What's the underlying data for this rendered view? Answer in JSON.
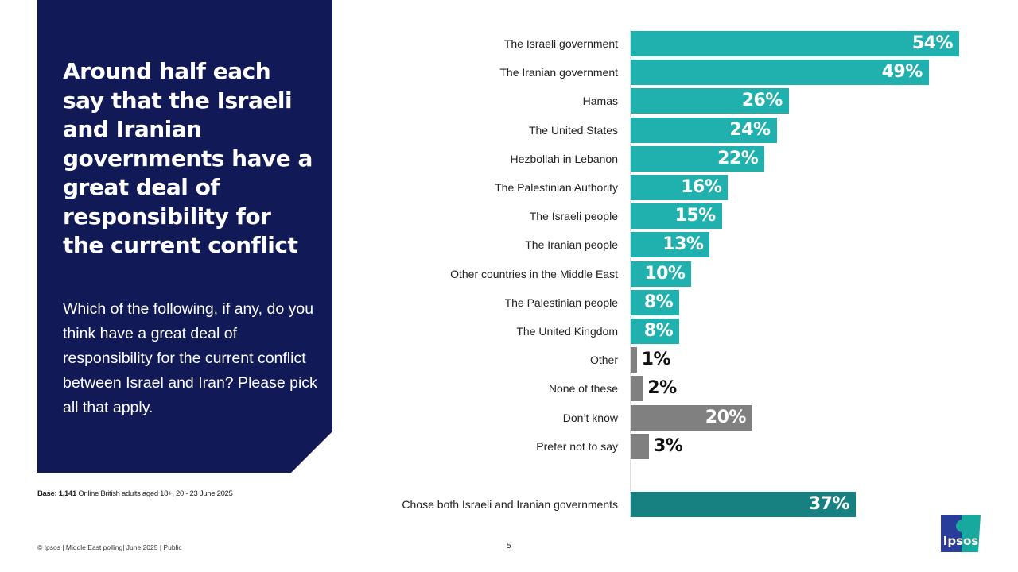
{
  "headline": "Around half each say that the Israeli and Iranian governments have a great deal of responsibility for the current conflict",
  "question": "Which of the following, if any, do you think have a great deal of responsibility for the current conflict between Israel and Iran? Please pick all that apply.",
  "base": {
    "label": "Base: 1,141",
    "text": " Online British adults aged 18+, 20 - 23 June 2025"
  },
  "footer": "© Ipsos | Middle East polling| June 2025 | Public",
  "page_number": "5",
  "logo_text": "Ipsos",
  "colors": {
    "panel": "#111a56",
    "teal": "#20b0ae",
    "grey": "#808080",
    "dark_teal": "#178080"
  },
  "chart_data": {
    "type": "bar",
    "orientation": "horizontal",
    "unit": "%",
    "xlim": [
      0,
      54
    ],
    "categories": [
      "The Israeli government",
      "The Iranian government",
      "Hamas",
      "The United States",
      "Hezbollah in Lebanon",
      "The Palestinian Authority",
      "The Israeli people",
      "The Iranian people",
      "Other countries in the Middle East",
      "The Palestinian people",
      "The United Kingdom",
      "Other",
      "None of these",
      "Don’t know",
      "Prefer not to say",
      "Chose both Israeli and Iranian governments"
    ],
    "values": [
      54,
      49,
      26,
      24,
      22,
      16,
      15,
      13,
      10,
      8,
      8,
      1,
      2,
      20,
      3,
      37
    ],
    "labels": [
      "54%",
      "49%",
      "26%",
      "24%",
      "22%",
      "16%",
      "15%",
      "13%",
      "10%",
      "8%",
      "8%",
      "1%",
      "2%",
      "20%",
      "3%",
      "37%"
    ],
    "bar_colors": [
      "teal",
      "teal",
      "teal",
      "teal",
      "teal",
      "teal",
      "teal",
      "teal",
      "teal",
      "teal",
      "teal",
      "grey",
      "grey",
      "grey",
      "grey",
      "dark_teal"
    ]
  }
}
